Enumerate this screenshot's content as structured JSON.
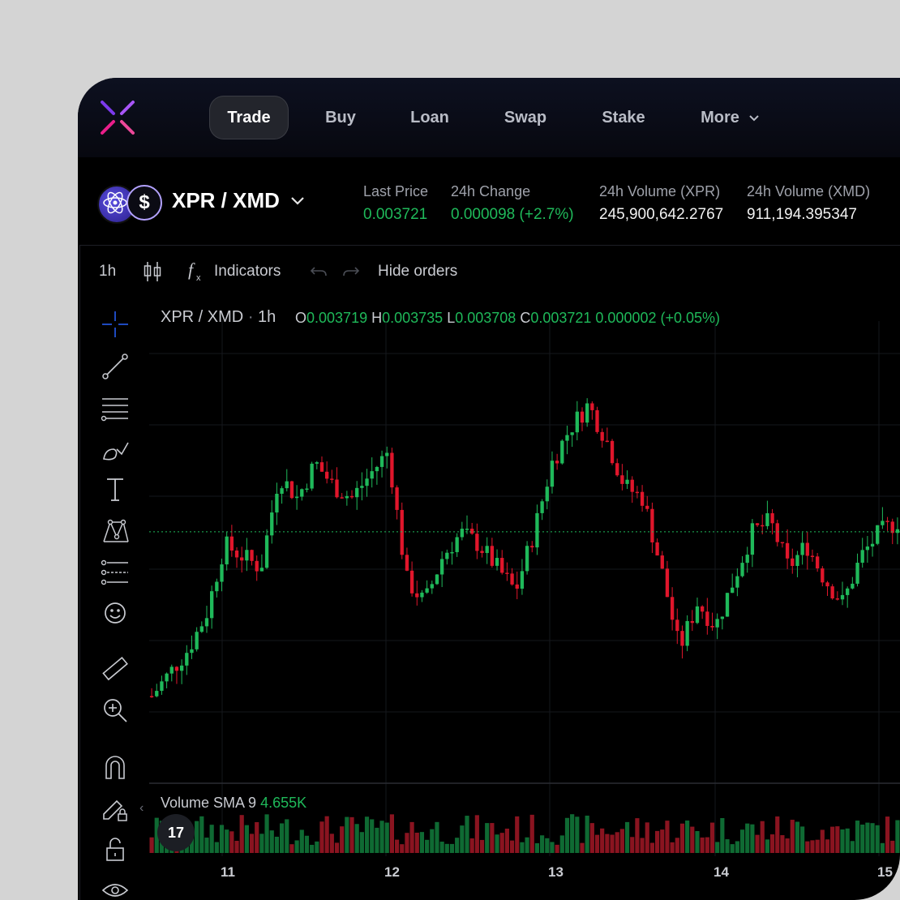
{
  "nav": {
    "items": [
      {
        "label": "Trade",
        "active": true
      },
      {
        "label": "Buy",
        "active": false
      },
      {
        "label": "Loan",
        "active": false
      },
      {
        "label": "Swap",
        "active": false
      },
      {
        "label": "Stake",
        "active": false
      },
      {
        "label": "More",
        "active": false
      }
    ]
  },
  "market": {
    "pair": "XPR / XMD",
    "coin_symbol": "$",
    "stats": [
      {
        "label": "Last Price",
        "value": "0.003721",
        "color": "green"
      },
      {
        "label": "24h Change",
        "value": "0.000098 (+2.7%)",
        "color": "green"
      },
      {
        "label": "24h Volume (XPR)",
        "value": "245,900,642.2767",
        "color": "white"
      },
      {
        "label": "24h Volume (XMD)",
        "value": "911,194.395347",
        "color": "white"
      }
    ]
  },
  "toolbar": {
    "interval": "1h",
    "indicators": "Indicators",
    "hide_orders": "Hide orders"
  },
  "legend": {
    "pair": "XPR / XMD",
    "sep": "·",
    "interval": "1h",
    "o_label": "O",
    "o": "0.003719",
    "h_label": "H",
    "h": "0.003735",
    "l_label": "L",
    "l": "0.003708",
    "c_label": "C",
    "c": "0.003721",
    "change": "0.000002 (+0.05%)"
  },
  "volume_legend": {
    "label": "Volume SMA 9",
    "value": "4.655K"
  },
  "tv_badge": "17",
  "colors": {
    "up": "#1fb95a",
    "down": "#e0162b",
    "accent": "#7c3aed"
  },
  "chart_data": {
    "type": "candlestick",
    "x_ticks": [
      "11",
      "12",
      "13",
      "14",
      "15"
    ],
    "last_price": 0.003721,
    "candles_close_trend": [
      0.00358,
      0.0036,
      0.00362,
      0.00365,
      0.00371,
      0.0037,
      0.00369,
      0.00377,
      0.00375,
      0.00378,
      0.00376,
      0.00375,
      0.00377,
      0.00379,
      0.00368,
      0.00366,
      0.0037,
      0.00372,
      0.00371,
      0.00369,
      0.00367,
      0.00372,
      0.00378,
      0.00381,
      0.00383,
      0.0038,
      0.00376,
      0.00375,
      0.00369,
      0.00362,
      0.00366,
      0.00364,
      0.00368,
      0.00372,
      0.00373,
      0.00369,
      0.00371,
      0.00368,
      0.00366,
      0.0037,
      0.00372,
      0.00373
    ],
    "volume_sma": "4.655K"
  }
}
